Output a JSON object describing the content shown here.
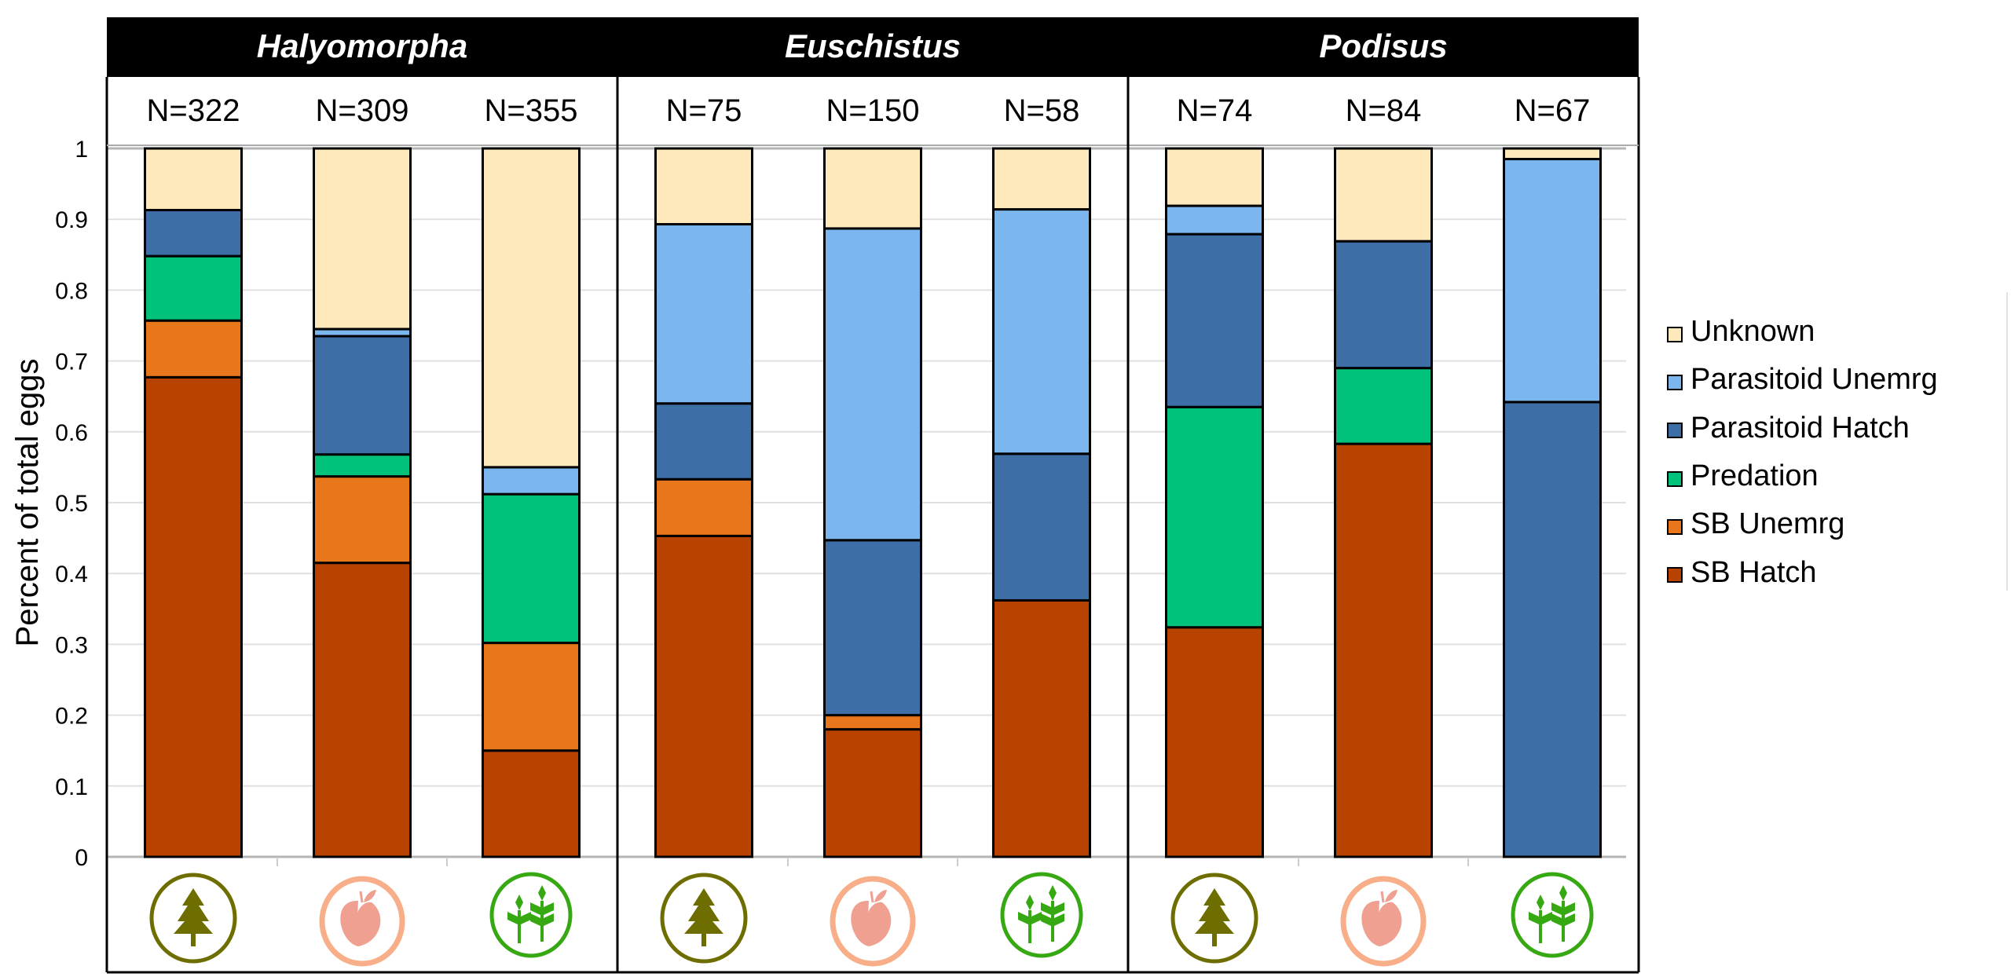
{
  "chart_data": {
    "type": "bar",
    "stacked": true,
    "ylabel": "Percent of total eggs",
    "ylim": [
      0,
      1
    ],
    "yticks": [
      "0",
      "0.1",
      "0.2",
      "0.3",
      "0.4",
      "0.5",
      "0.6",
      "0.7",
      "0.8",
      "0.9",
      "1"
    ],
    "grid": true,
    "legend_position": "right",
    "series": [
      {
        "name": "SB Hatch",
        "color": "#b84300"
      },
      {
        "name": "SB Unemrg",
        "color": "#e8761a"
      },
      {
        "name": "Predation",
        "color": "#00c27a"
      },
      {
        "name": "Parasitoid Hatch",
        "color": "#3d6ea6"
      },
      {
        "name": "Parasitoid Unemrg",
        "color": "#7cb6ee"
      },
      {
        "name": "Unknown",
        "color": "#fde9bb"
      }
    ],
    "legend": [
      "Unknown",
      "Parasitoid Unemrg",
      "Parasitoid Hatch",
      "Predation",
      "SB Unemrg",
      "SB Hatch"
    ],
    "habitat_icons": [
      {
        "name": "tree-icon",
        "color": "#6e6e00",
        "ring": "#6e6e00"
      },
      {
        "name": "peach-icon",
        "color": "#f0a090",
        "ring": "#f8ae88"
      },
      {
        "name": "crop-icon",
        "color": "#36a812",
        "ring": "#36a812"
      }
    ],
    "groups": [
      {
        "name": "Halyomorpha",
        "bars": [
          {
            "n_label": "N=322",
            "habitat": "tree",
            "values": {
              "SB Hatch": 0.677,
              "SB Unemrg": 0.08,
              "Predation": 0.091,
              "Parasitoid Hatch": 0.065,
              "Parasitoid Unemrg": 0.0,
              "Unknown": 0.087
            }
          },
          {
            "n_label": "N=309",
            "habitat": "peach",
            "values": {
              "SB Hatch": 0.415,
              "SB Unemrg": 0.122,
              "Predation": 0.031,
              "Parasitoid Hatch": 0.167,
              "Parasitoid Unemrg": 0.01,
              "Unknown": 0.255
            }
          },
          {
            "n_label": "N=355",
            "habitat": "crop",
            "values": {
              "SB Hatch": 0.15,
              "SB Unemrg": 0.152,
              "Predation": 0.21,
              "Parasitoid Hatch": 0.0,
              "Parasitoid Unemrg": 0.038,
              "Unknown": 0.45
            }
          }
        ]
      },
      {
        "name": "Euschistus",
        "bars": [
          {
            "n_label": "N=75",
            "habitat": "tree",
            "values": {
              "SB Hatch": 0.453,
              "SB Unemrg": 0.08,
              "Predation": 0.0,
              "Parasitoid Hatch": 0.107,
              "Parasitoid Unemrg": 0.253,
              "Unknown": 0.107
            }
          },
          {
            "n_label": "N=150",
            "habitat": "peach",
            "values": {
              "SB Hatch": 0.18,
              "SB Unemrg": 0.02,
              "Predation": 0.0,
              "Parasitoid Hatch": 0.247,
              "Parasitoid Unemrg": 0.44,
              "Unknown": 0.113
            }
          },
          {
            "n_label": "N=58",
            "habitat": "crop",
            "values": {
              "SB Hatch": 0.362,
              "SB Unemrg": 0.0,
              "Predation": 0.0,
              "Parasitoid Hatch": 0.207,
              "Parasitoid Unemrg": 0.345,
              "Unknown": 0.086
            }
          }
        ]
      },
      {
        "name": "Podisus",
        "bars": [
          {
            "n_label": "N=74",
            "habitat": "tree",
            "values": {
              "SB Hatch": 0.324,
              "SB Unemrg": 0.0,
              "Predation": 0.311,
              "Parasitoid Hatch": 0.244,
              "Parasitoid Unemrg": 0.04,
              "Unknown": 0.081
            }
          },
          {
            "n_label": "N=84",
            "habitat": "peach",
            "values": {
              "SB Hatch": 0.583,
              "SB Unemrg": 0.0,
              "Predation": 0.107,
              "Parasitoid Hatch": 0.179,
              "Parasitoid Unemrg": 0.0,
              "Unknown": 0.131
            }
          },
          {
            "n_label": "N=67",
            "habitat": "crop",
            "values": {
              "SB Hatch": 0.0,
              "SB Unemrg": 0.0,
              "Predation": 0.0,
              "Parasitoid Hatch": 0.642,
              "Parasitoid Unemrg": 0.343,
              "Unknown": 0.015
            }
          }
        ]
      }
    ]
  }
}
